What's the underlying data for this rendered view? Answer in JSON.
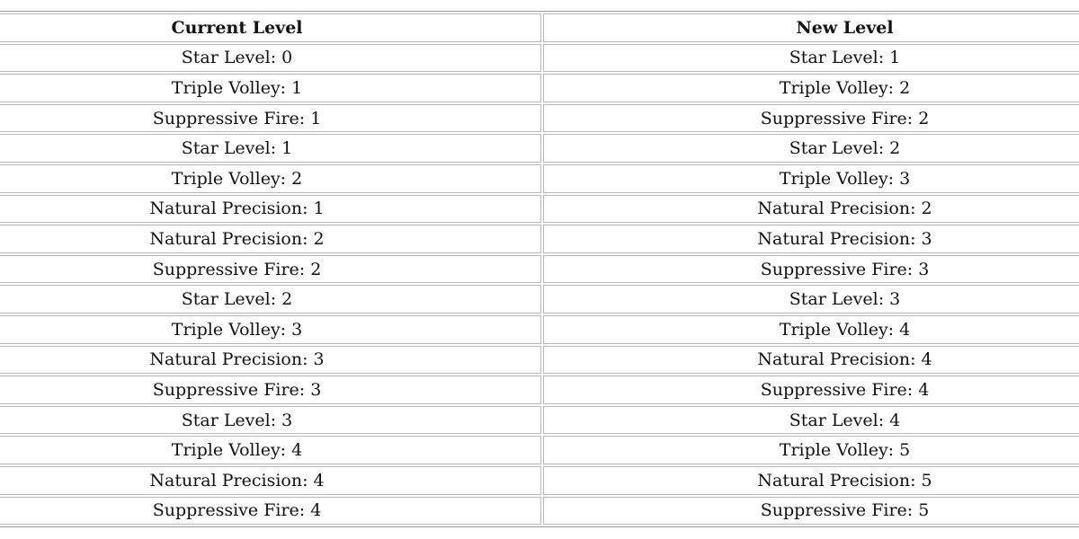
{
  "table": {
    "header": [
      "Current Level",
      "New Level"
    ],
    "rows": [
      [
        "Star Level: 0",
        "Star Level: 1"
      ],
      [
        "Triple Volley: 1",
        "Triple Volley: 2"
      ],
      [
        "Suppressive Fire: 1",
        "Suppressive Fire: 2"
      ],
      [
        "Star Level: 1",
        "Star Level: 2"
      ],
      [
        "Triple Volley: 2",
        "Triple Volley: 3"
      ],
      [
        "Natural Precision: 1",
        "Natural Precision: 2"
      ],
      [
        "Natural Precision: 2",
        "Natural Precision: 3"
      ],
      [
        "Suppressive Fire: 2",
        "Suppressive Fire: 3"
      ],
      [
        "Star Level: 2",
        "Star Level: 3"
      ],
      [
        "Triple Volley: 3",
        "Triple Volley: 4"
      ],
      [
        "Natural Precision: 3",
        "Natural Precision: 4"
      ],
      [
        "Suppressive Fire: 3",
        "Suppressive Fire: 4"
      ],
      [
        "Star Level: 3",
        "Star Level: 4"
      ],
      [
        "Triple Volley: 4",
        "Triple Volley: 5"
      ],
      [
        "Natural Precision: 4",
        "Natural Precision: 5"
      ],
      [
        "Suppressive Fire: 4",
        "Suppressive Fire: 5"
      ]
    ]
  }
}
